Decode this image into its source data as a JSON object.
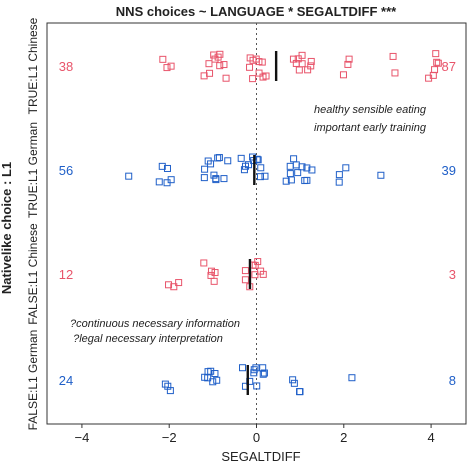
{
  "chart_data": {
    "type": "scatter",
    "title": "NNS choices ~ LANGUAGE * SEGALTDIFF ***",
    "xlabel": "SEGALTDIFF",
    "ylabel": "Nativelike choice : L1",
    "xlim": [
      -4.8,
      4.8
    ],
    "x_ticks": [
      "−4",
      "−2",
      "0",
      "2",
      "4"
    ],
    "x_tick_values": [
      -4,
      -2,
      0,
      2,
      4
    ],
    "reference_line_x": 0,
    "colors": {
      "Chinese": "#e8546a",
      "German": "#1f5fc8"
    },
    "rows": [
      {
        "label": "TRUE:L1 Chinese",
        "language": "Chinese",
        "left_count": "38",
        "right_count": "87",
        "mean_x": 0.45,
        "points_x": [
          -2.05,
          -2.1,
          -1.95,
          -1.15,
          -1.1,
          -1.05,
          -1.0,
          -0.95,
          -0.9,
          -0.85,
          -0.8,
          -0.75,
          -0.7,
          -0.2,
          -0.15,
          -0.1,
          -0.05,
          0.0,
          0.05,
          0.1,
          0.15,
          0.2,
          0.25,
          0.85,
          0.9,
          0.95,
          1.0,
          1.05,
          1.1,
          1.15,
          1.2,
          1.25,
          2.0,
          2.1,
          2.15,
          3.1,
          3.2,
          3.9,
          4.0,
          4.05,
          4.1,
          4.15,
          4.2
        ]
      },
      {
        "label": "TRUE:L1 German",
        "language": "German",
        "left_count": "56",
        "right_count": "39",
        "mean_x": -0.05,
        "points_x": [
          -2.95,
          -2.2,
          -2.1,
          -2.05,
          -2.0,
          -1.95,
          -1.2,
          -1.15,
          -1.1,
          -1.05,
          -1.0,
          -0.95,
          -0.9,
          -0.85,
          -0.8,
          -0.75,
          -0.7,
          -0.35,
          -0.25,
          -0.2,
          -0.15,
          -0.1,
          -0.05,
          0.0,
          0.05,
          0.1,
          0.15,
          0.2,
          0.7,
          0.75,
          0.8,
          0.85,
          0.9,
          0.95,
          1.0,
          1.05,
          1.1,
          1.15,
          1.2,
          1.25,
          1.85,
          1.9,
          2.0,
          2.85
        ]
      },
      {
        "label": "FALSE:L1 Chinese",
        "language": "Chinese",
        "left_count": "12",
        "right_count": "3",
        "mean_x": -0.15,
        "points_x": [
          -2.05,
          -1.9,
          -1.8,
          -1.2,
          -1.1,
          -1.05,
          -1.0,
          -0.95,
          -0.3,
          -0.2,
          -0.15,
          -0.1,
          -0.05,
          0.0,
          0.05,
          0.1,
          0.15
        ]
      },
      {
        "label": "FALSE:L1 German",
        "language": "German",
        "left_count": "24",
        "right_count": "8",
        "mean_x": -0.2,
        "points_x": [
          -2.05,
          -2.0,
          -1.95,
          -1.2,
          -1.15,
          -1.1,
          -1.05,
          -1.0,
          -0.95,
          -0.9,
          -0.3,
          -0.2,
          -0.15,
          -0.1,
          -0.05,
          0.0,
          0.05,
          0.1,
          0.15,
          0.2,
          0.8,
          0.9,
          0.95,
          1.0,
          2.15
        ]
      }
    ],
    "annotations": [
      "healthy sensible eating",
      "important early training",
      "?continuous necessary information",
      "?legal necessary interpretation"
    ]
  }
}
